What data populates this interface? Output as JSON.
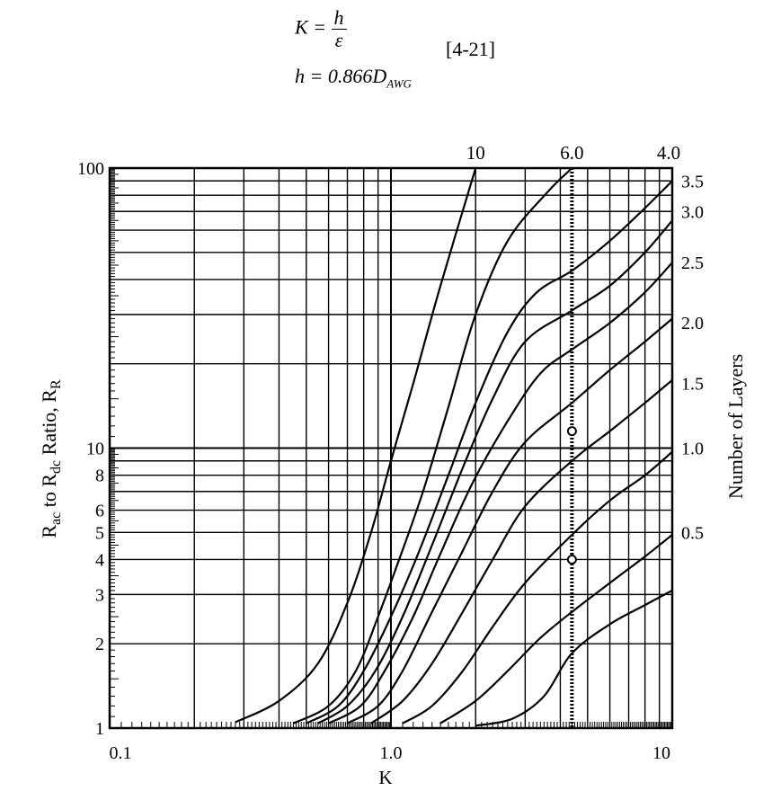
{
  "formula": {
    "line1_lhs": "K =",
    "line1_num": "h",
    "line1_den": "ε",
    "eq_number": "[4-21]",
    "line2_lhs": "h = 0.866",
    "line2_D": "D",
    "line2_sub": "AWG"
  },
  "chart_data": {
    "type": "line",
    "title": "",
    "xlabel": "K",
    "ylabel": "R_ac to R_dc Ratio, R_R",
    "right_label": "Number of Layers",
    "x_scale": "log",
    "y_scale": "log",
    "xlim": [
      0.1,
      10
    ],
    "ylim": [
      1,
      100
    ],
    "grid": true,
    "x_tick_labels": [
      {
        "v": 0.1,
        "t": "0.1"
      },
      {
        "v": 1,
        "t": "1.0"
      },
      {
        "v": 10,
        "t": "10"
      }
    ],
    "y_tick_labels": [
      {
        "v": 100,
        "t": "100"
      },
      {
        "v": 10,
        "t": "10"
      },
      {
        "v": 8,
        "t": "8"
      },
      {
        "v": 6,
        "t": "6"
      },
      {
        "v": 5,
        "t": "5"
      },
      {
        "v": 4,
        "t": "4"
      },
      {
        "v": 3,
        "t": "3"
      },
      {
        "v": 2,
        "t": "2"
      },
      {
        "v": 1,
        "t": "1"
      }
    ],
    "series": [
      {
        "name": "10",
        "points": [
          [
            0.28,
            1.05
          ],
          [
            0.4,
            1.25
          ],
          [
            0.55,
            1.7
          ],
          [
            0.7,
            2.8
          ],
          [
            0.85,
            5
          ],
          [
            1.0,
            9
          ],
          [
            1.2,
            17
          ],
          [
            1.5,
            38
          ],
          [
            2.0,
            100
          ]
        ]
      },
      {
        "name": "6.0",
        "points": [
          [
            0.45,
            1.04
          ],
          [
            0.6,
            1.2
          ],
          [
            0.75,
            1.6
          ],
          [
            0.9,
            2.5
          ],
          [
            1.05,
            3.8
          ],
          [
            1.3,
            7
          ],
          [
            1.6,
            14
          ],
          [
            2.0,
            30
          ],
          [
            2.6,
            55
          ],
          [
            3.6,
            82
          ],
          [
            4.4,
            100
          ]
        ]
      },
      {
        "name": "4.0",
        "points": [
          [
            0.5,
            1.04
          ],
          [
            0.65,
            1.2
          ],
          [
            0.8,
            1.6
          ],
          [
            1.0,
            2.5
          ],
          [
            1.25,
            4.2
          ],
          [
            1.6,
            8
          ],
          [
            2.0,
            14.5
          ],
          [
            2.6,
            26
          ],
          [
            3.3,
            36
          ],
          [
            4.4,
            43
          ],
          [
            6,
            55
          ],
          [
            8,
            72
          ],
          [
            10,
            90
          ]
        ]
      },
      {
        "name": "3.5",
        "points": [
          [
            0.55,
            1.04
          ],
          [
            0.7,
            1.2
          ],
          [
            0.88,
            1.6
          ],
          [
            1.1,
            2.5
          ],
          [
            1.4,
            4.5
          ],
          [
            1.8,
            8.5
          ],
          [
            2.3,
            15
          ],
          [
            3.0,
            24
          ],
          [
            4.4,
            31
          ],
          [
            6,
            38
          ],
          [
            8,
            50
          ],
          [
            10,
            65
          ]
        ]
      },
      {
        "name": "3.0",
        "points": [
          [
            0.6,
            1.04
          ],
          [
            0.78,
            1.2
          ],
          [
            0.95,
            1.6
          ],
          [
            1.2,
            2.5
          ],
          [
            1.5,
            4.2
          ],
          [
            1.95,
            7.5
          ],
          [
            2.6,
            12.5
          ],
          [
            3.4,
            18.5
          ],
          [
            4.4,
            22.5
          ],
          [
            6,
            28
          ],
          [
            8,
            36
          ],
          [
            10,
            46
          ]
        ]
      },
      {
        "name": "2.5",
        "points": [
          [
            0.7,
            1.04
          ],
          [
            0.9,
            1.2
          ],
          [
            1.1,
            1.6
          ],
          [
            1.4,
            2.6
          ],
          [
            1.8,
            4.3
          ],
          [
            2.3,
            7
          ],
          [
            3.0,
            10.5
          ],
          [
            4.4,
            14.5
          ],
          [
            6,
            19
          ],
          [
            8,
            24
          ],
          [
            10,
            29
          ]
        ]
      },
      {
        "name": "2.0",
        "points": [
          [
            0.85,
            1.04
          ],
          [
            1.1,
            1.25
          ],
          [
            1.4,
            1.7
          ],
          [
            1.8,
            2.6
          ],
          [
            2.3,
            4
          ],
          [
            3.0,
            6.2
          ],
          [
            4.4,
            9
          ],
          [
            6,
            11.5
          ],
          [
            8,
            14.5
          ],
          [
            10,
            17.5
          ]
        ]
      },
      {
        "name": "1.5",
        "points": [
          [
            1.1,
            1.04
          ],
          [
            1.4,
            1.2
          ],
          [
            1.8,
            1.6
          ],
          [
            2.3,
            2.3
          ],
          [
            3.0,
            3.3
          ],
          [
            4.4,
            4.9
          ],
          [
            6,
            6.5
          ],
          [
            8,
            8
          ],
          [
            10,
            9.7
          ]
        ]
      },
      {
        "name": "1.0",
        "points": [
          [
            1.5,
            1.04
          ],
          [
            2.0,
            1.25
          ],
          [
            2.6,
            1.6
          ],
          [
            3.4,
            2.1
          ],
          [
            4.4,
            2.6
          ],
          [
            6,
            3.3
          ],
          [
            8,
            4.1
          ],
          [
            10,
            4.9
          ]
        ]
      },
      {
        "name": "0.5",
        "points": [
          [
            2.0,
            1.02
          ],
          [
            2.7,
            1.08
          ],
          [
            3.5,
            1.3
          ],
          [
            4.4,
            1.85
          ],
          [
            6,
            2.35
          ],
          [
            8,
            2.75
          ],
          [
            10,
            3.1
          ]
        ]
      }
    ],
    "marker_line": {
      "x": 4.4,
      "style": "dotted"
    },
    "markers": [
      {
        "x": 4.4,
        "y": 11.5
      },
      {
        "x": 4.4,
        "y": 4.0
      }
    ],
    "top_labels": [
      {
        "t": "10",
        "x": 2.0
      },
      {
        "t": "6.0",
        "x": 4.4
      },
      {
        "t": "4.0",
        "x": 10
      }
    ],
    "right_labels": [
      {
        "t": "3.5",
        "y": 90
      },
      {
        "t": "3.0",
        "y": 70
      },
      {
        "t": "2.5",
        "y": 46
      },
      {
        "t": "2.0",
        "y": 28
      },
      {
        "t": "1.5",
        "y": 17
      },
      {
        "t": "1.0",
        "y": 10
      },
      {
        "t": "0.5",
        "y": 5
      }
    ]
  }
}
